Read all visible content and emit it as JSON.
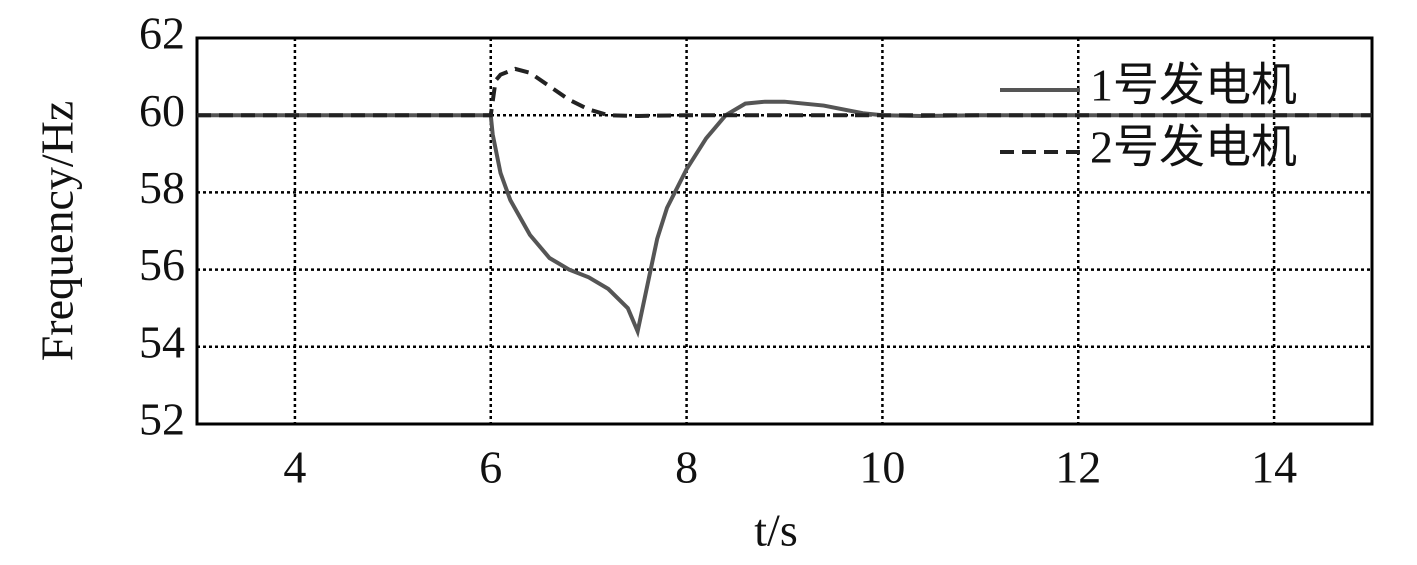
{
  "chart_data": {
    "type": "line",
    "x_label": "t/s",
    "y_label": "Frequency/Hz",
    "xlim": [
      3,
      15
    ],
    "xticks": [
      4,
      6,
      8,
      10,
      12,
      14
    ],
    "ylim": [
      52,
      62
    ],
    "yticks": [
      52,
      54,
      56,
      58,
      60,
      62
    ],
    "grid": true,
    "legend": "top-right",
    "series": [
      {
        "name": "1号发电机",
        "color": "#555555",
        "dash": "solid",
        "x": [
          3,
          6,
          6.02,
          6.1,
          6.2,
          6.4,
          6.6,
          6.8,
          7.0,
          7.2,
          7.4,
          7.5,
          7.6,
          7.7,
          7.8,
          8.0,
          8.2,
          8.4,
          8.6,
          8.8,
          9.0,
          9.4,
          9.8,
          10.0,
          10.4,
          11,
          15
        ],
        "values": [
          60,
          60,
          59.5,
          58.5,
          57.8,
          56.9,
          56.3,
          56.0,
          55.8,
          55.5,
          55.0,
          54.4,
          55.6,
          56.8,
          57.6,
          58.6,
          59.4,
          60.0,
          60.3,
          60.35,
          60.35,
          60.25,
          60.05,
          60.0,
          59.98,
          60.0,
          60
        ]
      },
      {
        "name": "2号发电机",
        "color": "#222222",
        "dash": "dashed",
        "x": [
          3,
          6,
          6.05,
          6.1,
          6.25,
          6.4,
          6.6,
          6.8,
          7.0,
          7.2,
          7.5,
          8,
          15
        ],
        "values": [
          60,
          60,
          60.9,
          61.05,
          61.2,
          61.1,
          60.75,
          60.4,
          60.15,
          60.0,
          59.98,
          60.0,
          60
        ]
      }
    ]
  }
}
